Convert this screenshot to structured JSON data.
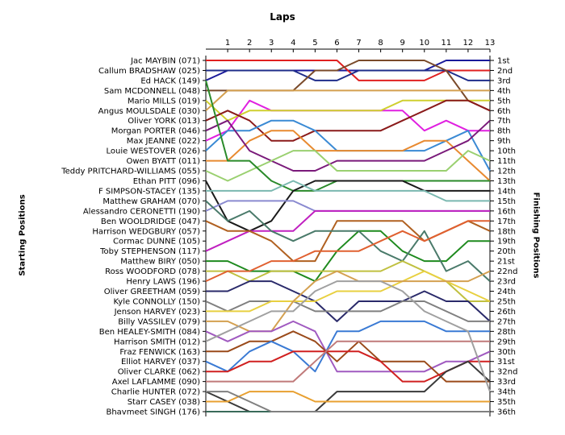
{
  "chart_data": {
    "type": "line",
    "title": "Laps",
    "xlabel": "Laps",
    "ylabel_left": "Starting Positions",
    "ylabel_right": "Finishing Positions",
    "x": [
      0,
      1,
      2,
      3,
      4,
      5,
      6,
      7,
      8,
      9,
      10,
      11,
      12,
      13
    ],
    "x_tick_labels": [
      "1",
      "2",
      "3",
      "4",
      "5",
      "6",
      "7",
      "8",
      "9",
      "10",
      "11",
      "12",
      "13"
    ],
    "starting_labels": [
      "Jac MAYBIN (071)",
      "Callum BRADSHAW (025)",
      "Ed HACK (149)",
      "Sam MCDONNELL (048)",
      "Mario MILLS (019)",
      "Angus  MOULSDALE  (030)",
      "Oliver YORK (013)",
      "Morgan PORTER (046)",
      "Max JEANNE (022)",
      "Louie WESTOVER (026)",
      "Owen BYATT (011)",
      "Teddy PRITCHARD-WILLIAMS (055)",
      "Ethan PITT (096)",
      "F SIMPSON-STACEY (135)",
      "Matthew GRAHAM (070)",
      "Alessandro CERONETTI (190)",
      "Ben WOOLDRIDGE (047)",
      "Harrison WEDGBURY (057)",
      "Cormac DUNNE (105)",
      "Toby STEPHENSON (117)",
      "Matthew BIRY (050)",
      "Ross WOODFORD (078)",
      "Henry LAWS (196)",
      "Oliver GREETHAM (059)",
      "Kyle CONNOLLY (150)",
      "Jenson HARVEY (023)",
      "Billy VASSILEV (079)",
      "Ben HEALEY-SMITH (084)",
      "Harrison SMITH (012)",
      "Fraz FENWICK (163)",
      "Elliot HARVEY (037)",
      "Oliver CLARKE (062)",
      "Axel LAFLAMME (090)",
      "Charlie HUNTER (072)",
      "Starr CASEY (038)",
      "Bhavmeet SINGH (176)"
    ],
    "finishing_labels": [
      "1st",
      "2nd",
      "3rd",
      "4th",
      "5th",
      "6th",
      "7th",
      "8th",
      "9th",
      "10th",
      "11th",
      "12th",
      "13th",
      "14th",
      "15th",
      "16th",
      "17th",
      "18th",
      "19th",
      "20th",
      "21st",
      "22nd",
      "23rd",
      "24th",
      "25th",
      "26th",
      "27th",
      "28th",
      "29th",
      "30th",
      "31st",
      "32nd",
      "33rd",
      "34th",
      "35th",
      "36th"
    ],
    "series": [
      {
        "color": "#1a1a9a",
        "positions": [
          2,
          1,
          1,
          1,
          1,
          1,
          1,
          1,
          1,
          1,
          1,
          0,
          0,
          0
        ]
      },
      {
        "color": "#e02020",
        "positions": [
          0,
          0,
          0,
          0,
          0,
          0,
          0,
          2,
          2,
          2,
          2,
          1,
          1,
          1
        ]
      },
      {
        "color": "#1f2d8a",
        "positions": [
          1,
          1,
          1,
          1,
          1,
          2,
          2,
          1,
          1,
          1,
          1,
          1,
          2,
          2
        ]
      },
      {
        "color": "#7a4a2a",
        "positions": [
          3,
          3,
          3,
          3,
          3,
          1,
          1,
          0,
          0,
          0,
          0,
          1,
          4,
          5
        ]
      },
      {
        "color": "#d4a050",
        "positions": [
          5,
          3,
          3,
          3,
          3,
          3,
          3,
          3,
          3,
          3,
          3,
          3,
          3,
          3
        ]
      },
      {
        "color": "#e020e0",
        "positions": [
          8,
          7,
          4,
          5,
          5,
          5,
          5,
          5,
          5,
          5,
          7,
          6,
          7,
          7
        ]
      },
      {
        "color": "#cfcf30",
        "positions": [
          4,
          6,
          5,
          5,
          5,
          5,
          5,
          5,
          5,
          4,
          4,
          4,
          4,
          4
        ]
      },
      {
        "color": "#8a1a1a",
        "positions": [
          6,
          5,
          6,
          8,
          8,
          7,
          7,
          7,
          7,
          6,
          5,
          4,
          4,
          5
        ]
      },
      {
        "color": "#3a8ad4",
        "positions": [
          9,
          7,
          7,
          6,
          6,
          7,
          9,
          9,
          9,
          9,
          9,
          8,
          7,
          11
        ]
      },
      {
        "color": "#e88a30",
        "positions": [
          10,
          10,
          8,
          7,
          7,
          9,
          9,
          9,
          9,
          9,
          8,
          8,
          10,
          12
        ]
      },
      {
        "color": "#7a1a7a",
        "positions": [
          7,
          6,
          9,
          10,
          11,
          11,
          10,
          10,
          10,
          10,
          10,
          9,
          8,
          6
        ]
      },
      {
        "color": "#9ad070",
        "positions": [
          11,
          12,
          11,
          10,
          9,
          9,
          11,
          11,
          11,
          11,
          11,
          11,
          9,
          10
        ]
      },
      {
        "color": "#2a8a2a",
        "positions": [
          2,
          10,
          10,
          12,
          13,
          13,
          12,
          12,
          12,
          12,
          12,
          12,
          12,
          12
        ]
      },
      {
        "color": "#1a1a1a",
        "positions": [
          12,
          16,
          17,
          16,
          13,
          12,
          12,
          12,
          12,
          12,
          13,
          13,
          13,
          13
        ]
      },
      {
        "color": "#7ab8b0",
        "positions": [
          13,
          13,
          13,
          13,
          12,
          13,
          13,
          13,
          13,
          13,
          13,
          14,
          14,
          14
        ]
      },
      {
        "color": "#8a8ad0",
        "positions": [
          15,
          14,
          14,
          14,
          14,
          15,
          15,
          15,
          15,
          15,
          15,
          15,
          15,
          15
        ]
      },
      {
        "color": "#c020c0",
        "positions": [
          19,
          18,
          17,
          17,
          17,
          15,
          15,
          15,
          15,
          15,
          15,
          15,
          15,
          15
        ]
      },
      {
        "color": "#b06020",
        "positions": [
          16,
          17,
          17,
          18,
          20,
          20,
          16,
          16,
          16,
          16,
          18,
          17,
          16,
          17
        ]
      },
      {
        "color": "#1e8a1e",
        "positions": [
          20,
          20,
          21,
          21,
          21,
          22,
          19,
          17,
          17,
          19,
          20,
          20,
          18,
          18
        ]
      },
      {
        "color": "#4a7a6a",
        "positions": [
          14,
          16,
          15,
          17,
          18,
          17,
          17,
          17,
          19,
          20,
          17,
          21,
          20,
          22
        ]
      },
      {
        "color": "#c0c040",
        "positions": [
          21,
          21,
          22,
          21,
          21,
          21,
          21,
          21,
          21,
          20,
          21,
          22,
          24,
          24
        ]
      },
      {
        "color": "#e06030",
        "positions": [
          22,
          21,
          21,
          20,
          20,
          19,
          19,
          19,
          18,
          17,
          18,
          17,
          16,
          16
        ]
      },
      {
        "color": "#2a2a6a",
        "positions": [
          23,
          23,
          22,
          22,
          23,
          24,
          26,
          24,
          24,
          24,
          23,
          24,
          24,
          26
        ]
      },
      {
        "color": "#808080",
        "positions": [
          24,
          25,
          24,
          24,
          24,
          25,
          25,
          25,
          25,
          24,
          24,
          25,
          26,
          26
        ]
      },
      {
        "color": "#e8d040",
        "positions": [
          25,
          25,
          25,
          24,
          24,
          24,
          23,
          23,
          23,
          22,
          21,
          22,
          23,
          24
        ]
      },
      {
        "color": "#d4a050",
        "positions": [
          26,
          26,
          27,
          27,
          24,
          22,
          21,
          22,
          22,
          22,
          22,
          22,
          22,
          21
        ]
      },
      {
        "color": "#a05ac0",
        "positions": [
          27,
          28,
          27,
          27,
          26,
          27,
          31,
          31,
          31,
          31,
          31,
          30,
          30,
          29
        ]
      },
      {
        "color": "#9a4a1a",
        "positions": [
          29,
          29,
          28,
          28,
          27,
          28,
          30,
          28,
          30,
          30,
          30,
          32,
          32,
          32
        ]
      },
      {
        "color": "#3a7ad4",
        "positions": [
          30,
          31,
          29,
          28,
          29,
          31,
          27,
          27,
          26,
          26,
          26,
          27,
          27,
          27
        ]
      },
      {
        "color": "#d02020",
        "positions": [
          31,
          31,
          30,
          30,
          29,
          29,
          29,
          29,
          30,
          32,
          32,
          31,
          30,
          30
        ]
      },
      {
        "color": "#c07a7a",
        "positions": [
          32,
          32,
          32,
          32,
          32,
          30,
          28,
          28,
          28,
          28,
          28,
          28,
          28,
          28
        ]
      },
      {
        "color": "#3a3a3a",
        "positions": [
          33,
          34,
          35,
          35,
          35,
          35,
          33,
          33,
          33,
          33,
          33,
          31,
          30,
          32
        ]
      },
      {
        "color": "#e8a030",
        "positions": [
          34,
          34,
          33,
          33,
          33,
          34,
          34,
          34,
          34,
          34,
          34,
          34,
          34,
          34
        ]
      },
      {
        "color": "#3a6a5a",
        "positions": [
          35,
          35,
          35,
          35,
          35,
          35,
          35,
          35,
          35,
          35,
          35,
          35,
          35,
          35
        ]
      },
      {
        "color": "#808080",
        "positions": [
          33,
          33,
          34,
          35,
          35,
          35,
          35,
          35,
          35,
          35,
          35,
          35,
          35,
          35
        ]
      },
      {
        "color": "#a0a0a0",
        "positions": [
          28,
          27,
          26,
          25,
          25,
          23,
          22,
          22,
          22,
          23,
          25,
          26,
          27,
          33
        ]
      }
    ]
  }
}
